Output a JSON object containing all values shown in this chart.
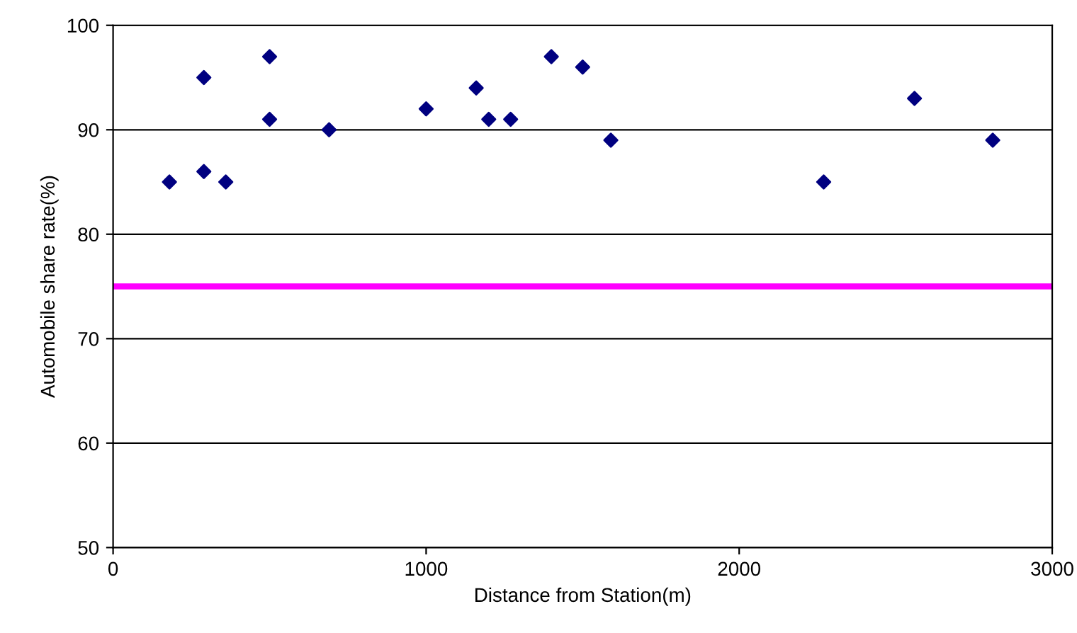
{
  "chart_data": {
    "type": "scatter",
    "xlabel": "Distance from Station(m)",
    "ylabel": "Automobile share rate(%)",
    "x": [
      180,
      290,
      290,
      360,
      500,
      500,
      690,
      1000,
      1160,
      1200,
      1270,
      1400,
      1500,
      1590,
      2270,
      2560,
      2810
    ],
    "series": [
      {
        "color": "#000080",
        "values": [
          85,
          95,
          86,
          85,
          97,
          91,
          90,
          92,
          94,
          91,
          91,
          97,
          96,
          89,
          85,
          93,
          89
        ]
      }
    ],
    "xlim": [
      0,
      3000
    ],
    "xticks": [
      0,
      1000,
      2000,
      3000
    ],
    "ylim": [
      50,
      100
    ],
    "yticks": [
      50,
      60,
      70,
      80,
      90,
      100
    ],
    "grid": "y",
    "marker": "diamond",
    "ref_lines": [
      {
        "axis": "y",
        "value": 75,
        "color": "#ff00ff",
        "line_style": "solid"
      }
    ]
  }
}
